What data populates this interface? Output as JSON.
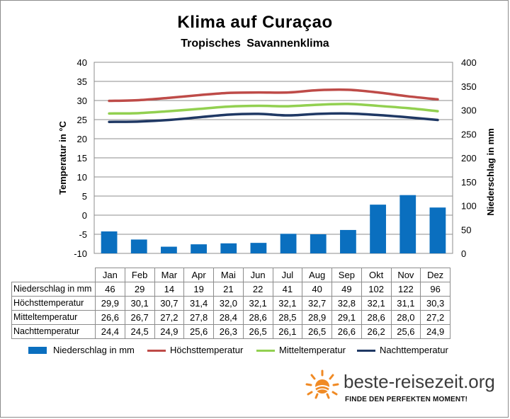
{
  "chart_data": {
    "type": "bar-line-combo",
    "title": "Klima auf Curaçao",
    "subtitle": "Tropisches  Savannenklima",
    "categories": [
      "Jan",
      "Feb",
      "Mar",
      "Apr",
      "Mai",
      "Jun",
      "Jul",
      "Aug",
      "Sep",
      "Okt",
      "Nov",
      "Dez"
    ],
    "y_left": {
      "label": "Temperatur in °C",
      "lim": [
        -10,
        40
      ],
      "ticks": [
        "40",
        "35",
        "30",
        "25",
        "20",
        "15",
        "10",
        "5",
        "0",
        "-5",
        "-10"
      ]
    },
    "y_right": {
      "label": "Niederschlag in mm",
      "lim": [
        0,
        400
      ],
      "ticks": [
        "400",
        "350",
        "300",
        "250",
        "200",
        "150",
        "100",
        "50",
        "0"
      ]
    },
    "grid": "horizontal",
    "series": [
      {
        "name": "Niederschlag in mm",
        "type": "bar",
        "axis": "right",
        "color": "#0a6fbf",
        "values": [
          46,
          29,
          14,
          19,
          21,
          22,
          41,
          40,
          49,
          102,
          122,
          96
        ],
        "labels": [
          "46",
          "29",
          "14",
          "19",
          "21",
          "22",
          "41",
          "40",
          "49",
          "102",
          "122",
          "96"
        ]
      },
      {
        "name": "Höchsttemperatur",
        "type": "line",
        "axis": "left",
        "color": "#be4b48",
        "values": [
          29.9,
          30.1,
          30.7,
          31.4,
          32.0,
          32.1,
          32.1,
          32.7,
          32.8,
          32.1,
          31.1,
          30.3
        ],
        "labels": [
          "29,9",
          "30,1",
          "30,7",
          "31,4",
          "32,0",
          "32,1",
          "32,1",
          "32,7",
          "32,8",
          "32,1",
          "31,1",
          "30,3"
        ]
      },
      {
        "name": "Mitteltemperatur",
        "type": "line",
        "axis": "left",
        "color": "#92d050",
        "values": [
          26.6,
          26.7,
          27.2,
          27.8,
          28.4,
          28.6,
          28.5,
          28.9,
          29.1,
          28.6,
          28.0,
          27.2
        ],
        "labels": [
          "26,6",
          "26,7",
          "27,2",
          "27,8",
          "28,4",
          "28,6",
          "28,5",
          "28,9",
          "29,1",
          "28,6",
          "28,0",
          "27,2"
        ]
      },
      {
        "name": "Nachttemperatur",
        "type": "line",
        "axis": "left",
        "color": "#1f3864",
        "values": [
          24.4,
          24.5,
          24.9,
          25.6,
          26.3,
          26.5,
          26.1,
          26.5,
          26.6,
          26.2,
          25.6,
          24.9
        ],
        "labels": [
          "24,4",
          "24,5",
          "24,9",
          "25,6",
          "26,3",
          "26,5",
          "26,1",
          "26,5",
          "26,6",
          "26,2",
          "25,6",
          "24,9"
        ]
      }
    ]
  },
  "brand": {
    "name": "beste-reisezeit.org",
    "tagline": "FINDE DEN PERFEKTEN MOMENT!",
    "icon": "sun-icon",
    "accent": "#f08a24"
  }
}
